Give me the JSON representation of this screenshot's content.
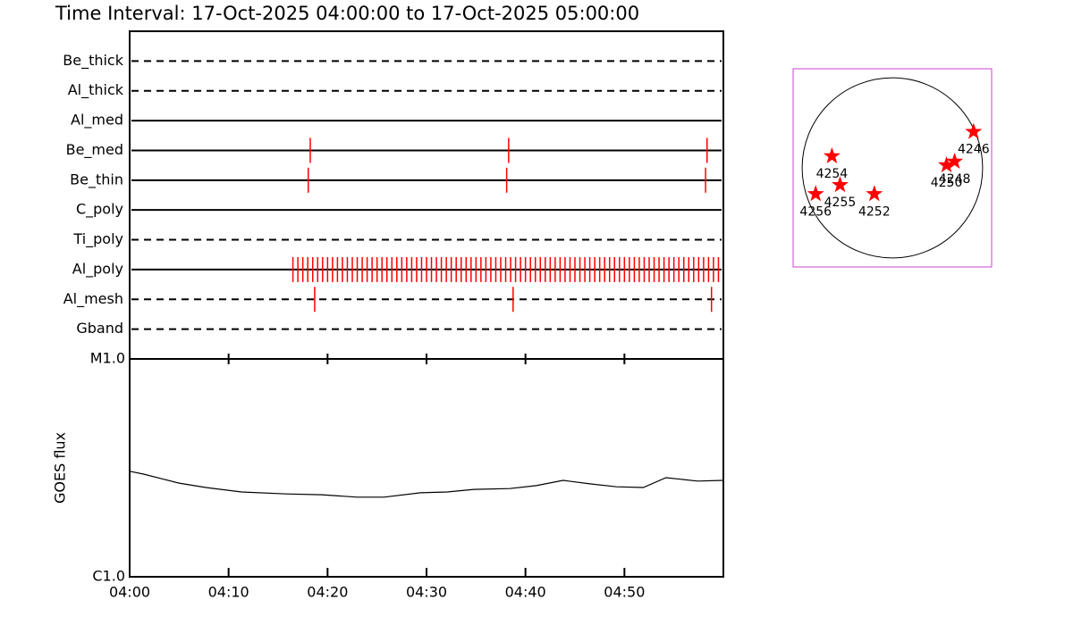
{
  "title": "Time Interval: 17-Oct-2025 04:00:00 to 17-Oct-2025 05:00:00",
  "chart_data": [
    {
      "type": "timeline",
      "color": "#ff0000",
      "xlim": [
        0,
        60
      ],
      "rows": [
        {
          "name": "Be_thick",
          "style": "dashed",
          "events": []
        },
        {
          "name": "Al_thick",
          "style": "dashed",
          "events": []
        },
        {
          "name": "Al_med",
          "style": "solid",
          "events": []
        },
        {
          "name": "Be_med",
          "style": "solid",
          "events": [
            18.25,
            38.3,
            58.35
          ]
        },
        {
          "name": "Be_thin",
          "style": "solid",
          "events": [
            18.05,
            38.1,
            58.2
          ]
        },
        {
          "name": "C_poly",
          "style": "solid",
          "events": []
        },
        {
          "name": "Ti_poly",
          "style": "dashed",
          "events": []
        },
        {
          "name": "Al_poly",
          "style": "solid",
          "events": [
            16.5,
            17,
            17.5,
            18,
            18.5,
            19,
            19.5,
            20,
            20.5,
            21,
            21.5,
            22,
            22.5,
            23,
            23.5,
            24,
            24.5,
            25,
            25.5,
            26,
            26.5,
            27,
            27.5,
            28,
            28.5,
            29,
            29.5,
            30,
            30.5,
            31,
            31.5,
            32,
            32.5,
            33,
            33.5,
            34,
            34.5,
            35,
            35.5,
            36,
            36.5,
            37,
            37.5,
            38,
            38.5,
            39,
            39.5,
            40,
            40.5,
            41,
            41.5,
            42,
            42.5,
            43,
            43.5,
            44,
            44.5,
            45,
            45.5,
            46,
            46.5,
            47,
            47.5,
            48,
            48.5,
            49,
            49.5,
            50,
            50.5,
            51,
            51.5,
            52,
            52.5,
            53,
            53.5,
            54,
            54.5,
            55,
            55.5,
            56,
            56.5,
            57,
            57.5,
            58,
            58.5,
            59,
            59.5
          ]
        },
        {
          "name": "Al_mesh",
          "style": "dashed",
          "events": [
            18.7,
            38.75,
            58.8
          ]
        },
        {
          "name": "Gband",
          "style": "dashed",
          "events": []
        }
      ]
    },
    {
      "type": "line",
      "ylabel": "GOES flux",
      "log_scale": true,
      "color": "#000000",
      "xlim": [
        0,
        60
      ],
      "xticks": [
        {
          "value": 0,
          "label": "04:00"
        },
        {
          "value": 10,
          "label": "04:10"
        },
        {
          "value": 20,
          "label": "04:20"
        },
        {
          "value": 30,
          "label": "04:30"
        },
        {
          "value": 40,
          "label": "04:40"
        },
        {
          "value": 50,
          "label": "04:50"
        }
      ],
      "ylim": [
        1e-06,
        1e-05
      ],
      "yticks": [
        {
          "value": 1e-06,
          "label": "C1.0"
        },
        {
          "value": 1e-05,
          "label": "M1.0"
        }
      ],
      "x": [
        0,
        1.4,
        3.2,
        5,
        7.7,
        11.3,
        15.8,
        19.4,
        23,
        25.7,
        29.4,
        32.1,
        34.8,
        38.4,
        41.1,
        43.8,
        46.5,
        49.2,
        51.9,
        54.2,
        57.4,
        60
      ],
      "values": [
        3.05e-06,
        2.96e-06,
        2.82e-06,
        2.69e-06,
        2.57e-06,
        2.45e-06,
        2.4e-06,
        2.38e-06,
        2.32e-06,
        2.32e-06,
        2.43e-06,
        2.45e-06,
        2.52e-06,
        2.54e-06,
        2.62e-06,
        2.77e-06,
        2.67e-06,
        2.59e-06,
        2.57e-06,
        2.85e-06,
        2.75e-06,
        2.77e-06
      ]
    },
    {
      "type": "scatter",
      "color": "#ff0000",
      "frame_color": "#cc44cc",
      "xlim": [
        -1100,
        1100
      ],
      "ylim": [
        -1100,
        1100
      ],
      "disk_radius": 1000,
      "points": [
        {
          "label": "4246",
          "x": 900,
          "y": 400
        },
        {
          "label": "4254",
          "x": -670,
          "y": 130
        },
        {
          "label": "4248",
          "x": 690,
          "y": 70
        },
        {
          "label": "4250",
          "x": 600,
          "y": 30
        },
        {
          "label": "4255",
          "x": -580,
          "y": -190
        },
        {
          "label": "4252",
          "x": -200,
          "y": -290
        },
        {
          "label": "4256",
          "x": -850,
          "y": -290
        }
      ]
    }
  ]
}
